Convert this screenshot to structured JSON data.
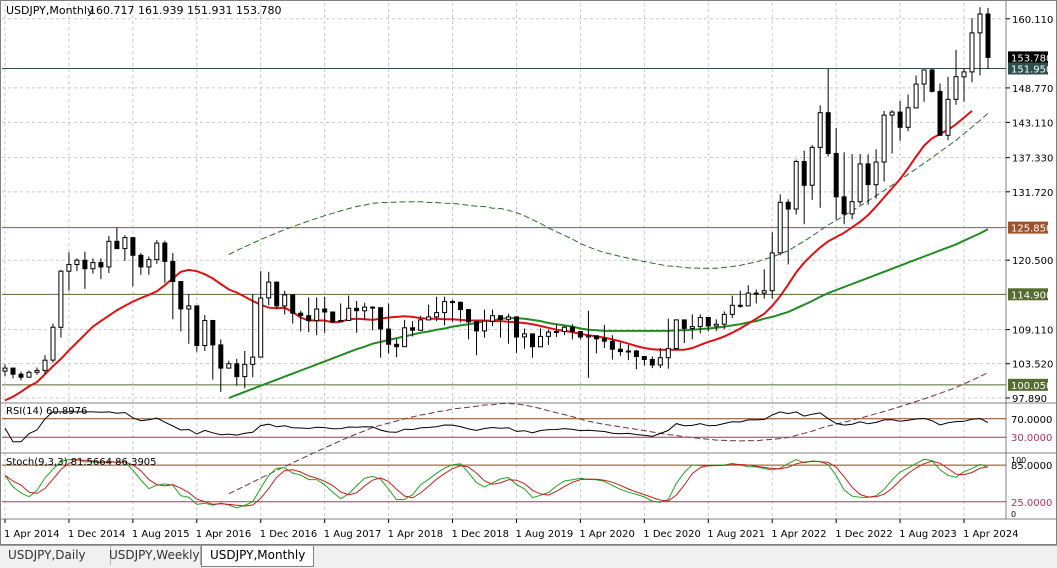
{
  "header": {
    "symbol": "USDJPY,Monthly",
    "ohlc": "160.717 161.939 151.931 153.780"
  },
  "price_axis": {
    "labels": [
      {
        "text": "160.110",
        "v": 160.11
      },
      {
        "text": "148.770",
        "v": 148.77
      },
      {
        "text": "143.110",
        "v": 143.11
      },
      {
        "text": "137.330",
        "v": 137.33
      },
      {
        "text": "131.720",
        "v": 131.72
      },
      {
        "text": "120.500",
        "v": 120.5
      },
      {
        "text": "109.110",
        "v": 109.11
      },
      {
        "text": "103.520",
        "v": 103.52
      },
      {
        "text": "97.890",
        "v": 97.89
      }
    ],
    "tags": [
      {
        "text": "153.780",
        "v": 153.78,
        "bg": "#000000",
        "fg": "#ffffff"
      },
      {
        "text": "151.950",
        "v": 151.95,
        "bg": "#2f4f4f",
        "fg": "#ffffff"
      },
      {
        "text": "125.850",
        "v": 125.85,
        "bg": "#a0522d",
        "fg": "#ffffff"
      },
      {
        "text": "114.900",
        "v": 114.9,
        "bg": "#556b2f",
        "fg": "#ffffff"
      },
      {
        "text": "100.050",
        "v": 100.05,
        "bg": "#556b2f",
        "fg": "#ffffff"
      }
    ]
  },
  "levels": [
    {
      "v": 151.95,
      "color": "#2f4f4f"
    },
    {
      "v": 125.85,
      "color": "#a0522d"
    },
    {
      "v": 114.9,
      "color": "#556b2f"
    },
    {
      "v": 100.05,
      "color": "#556b2f"
    }
  ],
  "rsi": {
    "label": "RSI(14) 60.8976",
    "levels": [
      {
        "text": "70.0000",
        "v": 70
      },
      {
        "text": "30.0000",
        "v": 30
      }
    ]
  },
  "stoch": {
    "label": "Stoch(9,3,3) 81.5664 86.3905",
    "levels": [
      {
        "text": "85.0000",
        "v": 85
      },
      {
        "text": "25.0000",
        "v": 25
      }
    ],
    "axis_top": "100",
    "axis_bottom": "0"
  },
  "time_axis": {
    "labels": [
      "1 Apr 2014",
      "1 Dec 2014",
      "1 Aug 2015",
      "1 Apr 2016",
      "1 Dec 2016",
      "1 Aug 2017",
      "1 Apr 2018",
      "1 Dec 2018",
      "1 Aug 2019",
      "1 Apr 2020",
      "1 Dec 2020",
      "1 Aug 2021",
      "1 Apr 2022",
      "1 Dec 2022",
      "1 Aug 2023",
      "1 Apr 2024"
    ]
  },
  "tabs": [
    {
      "label": "USDJPY,Daily",
      "active": false
    },
    {
      "label": "USDJPY,Weekly",
      "active": false
    },
    {
      "label": "USDJPY,Monthly",
      "active": true
    }
  ],
  "chart_data": {
    "type": "candlestick",
    "title": "USDJPY,Monthly",
    "ylim": [
      97.89,
      162.7
    ],
    "colors": {
      "up": "#ffffff",
      "down": "#000000",
      "sma_fast": "#dd1111",
      "sma_slow": "#238b23",
      "band": "#2e6b2e",
      "band_lower": "#7a3030",
      "rsi": "#000000",
      "stoch_main": "#22a122",
      "stoch_signal": "#c02020"
    },
    "closes": [
      102.8,
      101.8,
      101.3,
      102.1,
      102.4,
      104.1,
      109.5,
      118.7,
      119.8,
      120.5,
      119.1,
      120.1,
      119.4,
      123.6,
      122.4,
      124.2,
      121.3,
      119.4,
      120.6,
      123.3,
      120.3,
      117.0,
      112.5,
      113.0,
      106.5,
      110.6,
      106.6,
      102.8,
      103.5,
      101.4,
      103.4,
      104.6,
      114.3,
      116.9,
      113.0,
      114.8,
      111.8,
      111.4,
      110.6,
      112.5,
      112.0,
      110.4,
      110.6,
      112.6,
      112.2,
      112.8,
      112.7,
      109.2,
      106.7,
      106.3,
      109.4,
      109.0,
      110.7,
      111.2,
      111.9,
      113.7,
      113.6,
      112.4,
      110.4,
      108.9,
      110.5,
      111.4,
      110.8,
      111.2,
      107.9,
      108.4,
      106.3,
      108.0,
      108.7,
      108.8,
      109.5,
      108.8,
      107.9,
      108.1,
      107.6,
      107.2,
      105.9,
      105.5,
      105.6,
      104.7,
      104.2,
      103.3,
      104.5,
      106.0,
      110.7,
      109.3,
      109.6,
      111.1,
      109.7,
      110.0,
      111.6,
      113.1,
      113.0,
      115.1,
      115.1,
      115.5,
      121.7,
      130.0,
      128.9,
      136.7,
      132.8,
      139.0,
      144.7,
      138.0,
      130.9,
      128.1,
      130.1,
      136.3,
      132.9,
      136.6,
      144.3,
      144.8,
      142.3,
      145.5,
      149.4,
      151.7,
      148.2,
      141.0,
      146.9,
      150.6,
      151.4,
      157.8,
      160.9,
      153.78
    ],
    "highs": [
      103.4,
      102.6,
      102.2,
      102.4,
      102.9,
      104.9,
      110.1,
      118.9,
      121.8,
      120.8,
      121.9,
      120.8,
      120.8,
      124.5,
      125.9,
      124.6,
      124.3,
      121.7,
      121.1,
      123.8,
      123.7,
      121.7,
      114.9,
      114.9,
      112.4,
      111.5,
      110.7,
      107.5,
      104.0,
      104.3,
      105.6,
      114.9,
      118.7,
      118.6,
      115.0,
      115.5,
      114.9,
      112.2,
      114.4,
      114.4,
      114.5,
      110.9,
      113.4,
      114.7,
      113.8,
      113.5,
      112.9,
      110.5,
      113.4,
      107.6,
      110.7,
      110.5,
      111.4,
      113.2,
      114.5,
      114.5,
      114.0,
      113.7,
      111.8,
      110.7,
      112.4,
      112.4,
      110.7,
      111.7,
      108.7,
      109.3,
      108.5,
      109.3,
      109.1,
      110.0,
      109.7,
      110.0,
      108.7,
      112.2,
      108.1,
      109.9,
      108.2,
      107.0,
      106.6,
      105.8,
      104.8,
      104.7,
      106.1,
      110.9,
      110.8,
      110.0,
      111.6,
      111.6,
      110.6,
      110.8,
      112.1,
      114.7,
      115.5,
      116.4,
      115.7,
      119.0,
      125.1,
      131.3,
      130.5,
      137.0,
      138.5,
      139.4,
      145.9,
      151.9,
      142.2,
      138.2,
      137.9,
      137.9,
      137.9,
      138.7,
      145.0,
      145.1,
      146.6,
      147.7,
      150.8,
      151.7,
      151.9,
      149.5,
      150.6,
      155.0,
      152.0,
      160.2,
      162.0,
      161.9
    ],
    "lows": [
      101.5,
      101.1,
      100.8,
      101.2,
      101.7,
      101.8,
      103.7,
      107.8,
      115.5,
      118.7,
      115.8,
      118.3,
      117.4,
      118.4,
      122.5,
      120.4,
      116.2,
      118.1,
      118.1,
      119.9,
      116.8,
      110.8,
      108.8,
      106.8,
      105.5,
      105.6,
      100.9,
      98.9,
      102.9,
      99.9,
      99.5,
      101.3,
      110.1,
      113.1,
      112.5,
      111.6,
      110.1,
      108.8,
      108.7,
      108.2,
      108.6,
      110.2,
      110.6,
      110.9,
      108.6,
      110.7,
      109.0,
      104.5,
      105.2,
      104.6,
      106.6,
      108.0,
      109.2,
      110.8,
      110.5,
      109.8,
      110.4,
      110.3,
      107.5,
      104.9,
      107.8,
      109.7,
      107.8,
      106.8,
      105.3,
      106.0,
      104.5,
      107.8,
      106.6,
      107.9,
      108.2,
      107.5,
      107.5,
      101.2,
      105.2,
      106.1,
      104.2,
      104.8,
      104.1,
      102.6,
      103.2,
      102.8,
      102.8,
      102.7,
      105.7,
      106.9,
      107.5,
      108.5,
      108.8,
      108.9,
      109.2,
      111.0,
      112.7,
      113.5,
      113.4,
      114.2,
      114.2,
      121.3,
      119.8,
      128.0,
      126.4,
      130.4,
      129.1,
      137.5,
      127.2,
      126.4,
      127.2,
      129.6,
      129.6,
      130.6,
      133.4,
      138.0,
      140.1,
      141.7,
      145.9,
      146.5,
      148.0,
      140.9,
      140.2,
      146.0,
      146.5,
      149.7,
      150.8,
      151.9
    ],
    "sma_fast": [
      97.5,
      98.1,
      98.9,
      99.8,
      100.5,
      101.8,
      103.1,
      104.3,
      105.7,
      107.0,
      108.3,
      109.6,
      110.5,
      111.4,
      112.3,
      113.0,
      113.7,
      114.3,
      114.8,
      115.4,
      116.4,
      117.5,
      118.6,
      118.9,
      118.7,
      118.2,
      117.5,
      116.6,
      115.7,
      115.2,
      114.5,
      113.8,
      113.2,
      112.7,
      112.6,
      112.7,
      112.0,
      111.1,
      110.6,
      110.6,
      110.6,
      110.3,
      110.4,
      110.8,
      110.9,
      110.8,
      110.7,
      110.9,
      111.1,
      111.2,
      111.3,
      111.2,
      111.0,
      110.9,
      110.9,
      110.8,
      110.8,
      110.7,
      110.6,
      110.6,
      110.6,
      110.5,
      110.5,
      110.4,
      110.3,
      110.2,
      110.0,
      109.7,
      109.4,
      109.1,
      108.9,
      108.7,
      108.4,
      108.2,
      108.0,
      107.8,
      107.5,
      107.2,
      106.8,
      106.4,
      106.1,
      105.9,
      105.8,
      105.8,
      105.8,
      105.8,
      106.1,
      106.6,
      107.1,
      107.5,
      108.0,
      108.6,
      109.3,
      110.1,
      110.9,
      111.7,
      113.0,
      114.6,
      116.5,
      118.5,
      120.1,
      121.4,
      122.6,
      123.6,
      124.3,
      125.0,
      125.9,
      126.8,
      127.9,
      129.3,
      130.8,
      132.3,
      133.8,
      135.6,
      137.5,
      139.3,
      140.5,
      141.2,
      141.9,
      142.8,
      143.9,
      145.0
    ],
    "sma_slow": [
      null,
      null,
      null,
      null,
      null,
      null,
      null,
      null,
      null,
      null,
      null,
      null,
      null,
      null,
      null,
      null,
      null,
      null,
      null,
      null,
      null,
      null,
      null,
      null,
      null,
      null,
      null,
      null,
      97.89,
      98.4,
      98.9,
      99.4,
      99.9,
      100.4,
      100.9,
      101.4,
      101.9,
      102.4,
      102.9,
      103.4,
      103.9,
      104.4,
      104.9,
      105.4,
      105.9,
      106.3,
      106.8,
      107.1,
      107.4,
      107.7,
      108.0,
      108.3,
      108.6,
      108.8,
      109.1,
      109.3,
      109.6,
      109.8,
      110.0,
      110.2,
      110.5,
      110.6,
      110.9,
      111.0,
      111.0,
      110.9,
      110.7,
      110.5,
      110.2,
      110.0,
      109.8,
      109.6,
      109.3,
      109.1,
      109.0,
      108.9,
      108.9,
      108.9,
      108.9,
      108.9,
      108.9,
      108.9,
      108.9,
      108.9,
      109.0,
      109.0,
      109.1,
      109.2,
      109.3,
      109.4,
      109.6,
      109.8,
      110.0,
      110.3,
      110.5,
      110.9,
      111.2,
      111.6,
      112.0,
      112.6,
      113.2,
      113.8,
      114.5,
      115.1,
      115.6,
      116.1,
      116.6,
      117.1,
      117.6,
      118.1,
      118.6,
      119.1,
      119.6,
      120.1,
      120.6,
      121.1,
      121.6,
      122.1,
      122.6,
      123.1,
      123.7,
      124.3,
      124.9,
      125.6
    ]
  }
}
